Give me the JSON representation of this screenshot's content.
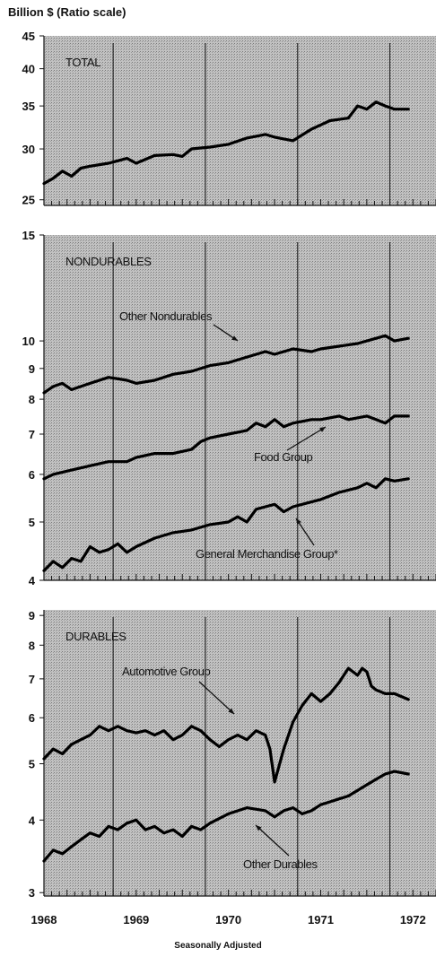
{
  "header": {
    "unit_label": "Billion $  (Ratio scale)"
  },
  "footer": {
    "note": "Seasonally Adjusted"
  },
  "x_axis": {
    "ticks": [
      "1968",
      "1969",
      "1970",
      "1971",
      "1972"
    ],
    "range": [
      1968.0,
      1972.25
    ]
  },
  "chart_data": [
    {
      "type": "line",
      "title": "TOTAL",
      "log_scale": true,
      "ylim": [
        24.5,
        45
      ],
      "yticks": [
        25,
        30,
        35,
        40,
        45
      ],
      "series": [
        {
          "x": [
            1968.0,
            1968.1,
            1968.2,
            1968.3,
            1968.4,
            1968.5,
            1968.7,
            1968.9,
            1969.0,
            1969.2,
            1969.4,
            1969.5,
            1969.6,
            1969.8,
            1970.0,
            1970.2,
            1970.4,
            1970.5,
            1970.7,
            1970.9,
            1971.0,
            1971.1,
            1971.3,
            1971.4,
            1971.5,
            1971.6,
            1971.7,
            1971.8,
            1971.95
          ],
          "y": [
            26.5,
            27.0,
            27.7,
            27.2,
            28.0,
            28.2,
            28.5,
            29.0,
            28.5,
            29.3,
            29.4,
            29.2,
            30.0,
            30.2,
            30.5,
            31.2,
            31.6,
            31.3,
            30.9,
            32.2,
            32.7,
            33.2,
            33.5,
            35.0,
            34.6,
            35.5,
            35.0,
            34.6,
            34.6
          ]
        }
      ]
    },
    {
      "type": "line",
      "title": "NONDURABLES",
      "log_scale": true,
      "ylim": [
        4.0,
        15
      ],
      "yticks": [
        4,
        5,
        6,
        7,
        8,
        9,
        10,
        15
      ],
      "annotations": [
        "Other Nondurables",
        "Food Group",
        "General Merchandise Group*"
      ],
      "series": [
        {
          "name": "Other Nondurables",
          "x": [
            1968.0,
            1968.1,
            1968.2,
            1968.3,
            1968.5,
            1968.7,
            1968.9,
            1969.0,
            1969.2,
            1969.4,
            1969.6,
            1969.8,
            1970.0,
            1970.2,
            1970.4,
            1970.5,
            1970.7,
            1970.9,
            1971.0,
            1971.2,
            1971.4,
            1971.6,
            1971.7,
            1971.8,
            1971.95
          ],
          "y": [
            8.2,
            8.4,
            8.5,
            8.3,
            8.5,
            8.7,
            8.6,
            8.5,
            8.6,
            8.8,
            8.9,
            9.1,
            9.2,
            9.4,
            9.6,
            9.5,
            9.7,
            9.6,
            9.7,
            9.8,
            9.9,
            10.1,
            10.2,
            10.0,
            10.1
          ]
        },
        {
          "name": "Food Group",
          "x": [
            1968.0,
            1968.1,
            1968.3,
            1968.5,
            1968.7,
            1968.9,
            1969.0,
            1969.2,
            1969.4,
            1969.6,
            1969.7,
            1969.8,
            1970.0,
            1970.2,
            1970.3,
            1970.4,
            1970.5,
            1970.6,
            1970.7,
            1970.9,
            1971.0,
            1971.2,
            1971.3,
            1971.5,
            1971.6,
            1971.7,
            1971.8,
            1971.95
          ],
          "y": [
            5.9,
            6.0,
            6.1,
            6.2,
            6.3,
            6.3,
            6.4,
            6.5,
            6.5,
            6.6,
            6.8,
            6.9,
            7.0,
            7.1,
            7.3,
            7.2,
            7.4,
            7.2,
            7.3,
            7.4,
            7.4,
            7.5,
            7.4,
            7.5,
            7.4,
            7.3,
            7.5,
            7.5
          ]
        },
        {
          "name": "General Merchandise Group*",
          "x": [
            1968.0,
            1968.1,
            1968.2,
            1968.3,
            1968.4,
            1968.5,
            1968.6,
            1968.7,
            1968.8,
            1968.9,
            1969.0,
            1969.2,
            1969.4,
            1969.6,
            1969.8,
            1970.0,
            1970.1,
            1970.2,
            1970.3,
            1970.4,
            1970.5,
            1970.6,
            1970.7,
            1970.9,
            1971.0,
            1971.2,
            1971.4,
            1971.5,
            1971.6,
            1971.7,
            1971.8,
            1971.95
          ],
          "y": [
            4.15,
            4.3,
            4.2,
            4.35,
            4.3,
            4.55,
            4.45,
            4.5,
            4.6,
            4.45,
            4.55,
            4.7,
            4.8,
            4.85,
            4.95,
            5.0,
            5.1,
            5.0,
            5.25,
            5.3,
            5.35,
            5.2,
            5.3,
            5.4,
            5.45,
            5.6,
            5.7,
            5.8,
            5.7,
            5.9,
            5.85,
            5.9
          ]
        }
      ]
    },
    {
      "type": "line",
      "title": "DURABLES",
      "log_scale": true,
      "ylim": [
        2.96,
        9.2
      ],
      "yticks": [
        3,
        4,
        5,
        6,
        7,
        8,
        9
      ],
      "annotations": [
        "Automotive Group",
        "Other Durables"
      ],
      "series": [
        {
          "name": "Automotive Group",
          "x": [
            1968.0,
            1968.1,
            1968.2,
            1968.3,
            1968.4,
            1968.5,
            1968.6,
            1968.7,
            1968.8,
            1968.9,
            1969.0,
            1969.1,
            1969.2,
            1969.3,
            1969.4,
            1969.5,
            1969.6,
            1969.7,
            1969.8,
            1969.9,
            1970.0,
            1970.1,
            1970.2,
            1970.3,
            1970.4,
            1970.45,
            1970.5,
            1970.6,
            1970.7,
            1970.8,
            1970.9,
            1971.0,
            1971.1,
            1971.2,
            1971.3,
            1971.4,
            1971.45,
            1971.5,
            1971.55,
            1971.6,
            1971.7,
            1971.8,
            1971.95
          ],
          "y": [
            5.1,
            5.3,
            5.2,
            5.4,
            5.5,
            5.6,
            5.8,
            5.7,
            5.8,
            5.7,
            5.65,
            5.7,
            5.6,
            5.7,
            5.5,
            5.6,
            5.8,
            5.7,
            5.5,
            5.35,
            5.5,
            5.6,
            5.5,
            5.7,
            5.6,
            5.3,
            4.65,
            5.3,
            5.9,
            6.3,
            6.6,
            6.4,
            6.6,
            6.9,
            7.3,
            7.1,
            7.3,
            7.2,
            6.8,
            6.7,
            6.6,
            6.6,
            6.45
          ]
        },
        {
          "name": "Other Durables",
          "x": [
            1968.0,
            1968.1,
            1968.2,
            1968.3,
            1968.4,
            1968.5,
            1968.6,
            1968.7,
            1968.8,
            1968.9,
            1969.0,
            1969.1,
            1969.2,
            1969.3,
            1969.4,
            1969.5,
            1969.6,
            1969.7,
            1969.8,
            1970.0,
            1970.2,
            1970.4,
            1970.5,
            1970.6,
            1970.7,
            1970.8,
            1970.9,
            1971.0,
            1971.1,
            1971.2,
            1971.3,
            1971.4,
            1971.5,
            1971.6,
            1971.7,
            1971.8,
            1971.95
          ],
          "y": [
            3.4,
            3.55,
            3.5,
            3.6,
            3.7,
            3.8,
            3.75,
            3.9,
            3.85,
            3.95,
            4.0,
            3.85,
            3.9,
            3.8,
            3.85,
            3.75,
            3.9,
            3.85,
            3.95,
            4.1,
            4.2,
            4.15,
            4.05,
            4.15,
            4.2,
            4.1,
            4.15,
            4.25,
            4.3,
            4.35,
            4.4,
            4.5,
            4.6,
            4.7,
            4.8,
            4.85,
            4.8
          ]
        }
      ]
    }
  ]
}
